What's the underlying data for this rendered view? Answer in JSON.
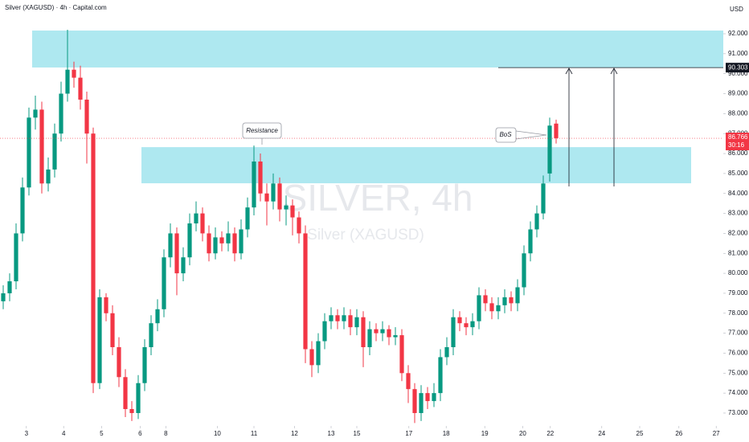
{
  "chart_data": {
    "type": "candlestick",
    "title": "Silver (XAGUSD) · 4h · Capital.com",
    "currency": "USD",
    "watermark": "SILVER, 4h",
    "watermark_subtitle": "Silver (XAGUSD)",
    "up_color": "#089981",
    "down_color": "#f23645",
    "open": [
      78.6,
      79.0,
      79.6,
      82.0,
      84.3,
      87.8,
      88.2,
      84.5,
      85.2,
      87.0,
      89.0,
      90.2,
      89.8,
      88.7,
      87.0,
      74.5,
      78.8,
      78.0,
      76.3,
      74.8,
      73.2,
      73.0,
      74.5,
      76.3,
      77.5,
      78.2,
      80.8,
      82.0,
      80.0,
      80.8,
      82.5,
      83.0,
      82.0,
      81.0,
      81.8,
      81.5,
      82.0,
      81.0,
      82.2,
      83.3,
      85.6,
      84.0,
      83.6,
      84.5,
      83.2,
      83.4,
      82.8,
      82.0,
      76.2,
      75.4,
      76.6,
      77.6,
      77.9,
      77.6,
      77.9,
      77.3,
      77.8,
      76.3,
      77.2,
      77.0,
      77.2,
      76.8,
      76.9,
      75.0,
      74.2,
      73.0,
      74.0,
      73.6,
      74.0,
      75.8,
      76.3,
      77.8,
      77.5,
      77.3,
      77.6,
      78.9,
      78.5,
      78.1,
      78.4,
      78.8,
      78.5,
      79.3,
      81.0,
      82.2,
      83.0,
      85.0,
      87.5
    ],
    "high": [
      79.4,
      80.0,
      82.5,
      84.8,
      88.3,
      88.9,
      88.6,
      85.8,
      87.5,
      89.6,
      92.2,
      90.6,
      90.4,
      89.1,
      87.3,
      79.2,
      79.0,
      78.4,
      76.8,
      75.2,
      73.6,
      74.9,
      76.7,
      77.9,
      78.7,
      81.2,
      82.5,
      82.3,
      81.3,
      83.0,
      83.6,
      83.3,
      82.4,
      82.3,
      82.1,
      82.6,
      82.3,
      82.7,
      83.8,
      86.4,
      86.0,
      84.5,
      85.0,
      84.8,
      83.9,
      83.7,
      83.1,
      82.4,
      76.6,
      77.0,
      78.0,
      78.3,
      78.2,
      78.3,
      78.2,
      78.2,
      78.1,
      77.6,
      77.5,
      77.6,
      77.4,
      77.3,
      77.2,
      75.4,
      74.5,
      74.4,
      74.3,
      74.5,
      76.2,
      76.8,
      78.2,
      78.1,
      77.8,
      78.0,
      79.3,
      79.2,
      78.8,
      78.8,
      79.2,
      79.1,
      79.7,
      81.4,
      82.6,
      83.4,
      84.9,
      87.8,
      87.7
    ],
    "low": [
      78.2,
      78.6,
      79.2,
      81.6,
      83.9,
      87.2,
      84.0,
      84.1,
      84.8,
      86.6,
      88.6,
      89.3,
      88.2,
      85.5,
      74.0,
      74.2,
      77.6,
      75.9,
      74.3,
      72.8,
      72.6,
      72.7,
      74.1,
      75.9,
      77.1,
      77.8,
      80.3,
      78.9,
      79.6,
      80.4,
      82.1,
      81.6,
      80.6,
      80.7,
      81.1,
      81.1,
      80.6,
      80.7,
      81.8,
      82.9,
      83.6,
      82.4,
      83.2,
      82.6,
      82.4,
      81.9,
      81.5,
      75.5,
      74.8,
      75.0,
      76.2,
      77.2,
      77.2,
      77.2,
      76.9,
      76.9,
      75.3,
      75.9,
      76.6,
      76.6,
      76.4,
      76.4,
      74.6,
      73.5,
      72.5,
      72.6,
      73.2,
      73.3,
      73.6,
      75.4,
      75.9,
      77.1,
      76.9,
      76.9,
      77.2,
      78.1,
      77.7,
      77.7,
      78.0,
      78.1,
      78.1,
      78.9,
      80.6,
      81.8,
      82.7,
      84.6,
      86.5
    ],
    "close": [
      79.0,
      79.6,
      82.0,
      84.3,
      87.8,
      88.2,
      84.5,
      85.2,
      87.0,
      89.0,
      90.2,
      89.8,
      88.7,
      87.0,
      74.5,
      78.8,
      78.0,
      76.3,
      74.8,
      73.2,
      73.0,
      74.5,
      76.3,
      77.5,
      78.2,
      80.8,
      82.0,
      80.0,
      80.8,
      82.5,
      83.0,
      82.0,
      81.0,
      81.8,
      81.5,
      82.0,
      81.0,
      82.2,
      83.3,
      85.6,
      84.0,
      83.6,
      84.5,
      83.2,
      83.4,
      82.8,
      82.0,
      76.2,
      75.4,
      76.6,
      77.6,
      77.9,
      77.6,
      77.9,
      77.3,
      77.8,
      76.3,
      77.2,
      77.0,
      77.2,
      76.8,
      76.9,
      75.0,
      74.2,
      73.0,
      74.0,
      73.6,
      74.0,
      75.8,
      76.3,
      77.8,
      77.5,
      77.3,
      77.6,
      78.9,
      78.5,
      78.1,
      78.4,
      78.8,
      78.5,
      79.3,
      81.0,
      82.2,
      83.0,
      84.5,
      87.4,
      86.77
    ],
    "xlim": [
      -0.5,
      112
    ],
    "xticks": [
      {
        "value": 3.6,
        "label": "3"
      },
      {
        "value": 9.4,
        "label": "4"
      },
      {
        "value": 15.3,
        "label": "5"
      },
      {
        "value": 21.3,
        "label": "6"
      },
      {
        "value": 25.3,
        "label": "8"
      },
      {
        "value": 33.3,
        "label": "10"
      },
      {
        "value": 39,
        "label": "11"
      },
      {
        "value": 45.3,
        "label": "12"
      },
      {
        "value": 51,
        "label": "13"
      },
      {
        "value": 55,
        "label": "15"
      },
      {
        "value": 63.1,
        "label": "17"
      },
      {
        "value": 68.9,
        "label": "18"
      },
      {
        "value": 74.9,
        "label": "19"
      },
      {
        "value": 80.8,
        "label": "20"
      },
      {
        "value": 85.1,
        "label": "22"
      },
      {
        "value": 93.1,
        "label": "24"
      },
      {
        "value": 99,
        "label": "25"
      },
      {
        "value": 105.1,
        "label": "26"
      },
      {
        "value": 110.9,
        "label": "27"
      }
    ],
    "ylim": [
      72.355,
      93.691
    ],
    "yticks": [
      {
        "value": 73,
        "label": "73.000"
      },
      {
        "value": 74,
        "label": "74.000"
      },
      {
        "value": 75,
        "label": "75.000"
      },
      {
        "value": 76,
        "label": "76.000"
      },
      {
        "value": 77,
        "label": "77.000"
      },
      {
        "value": 78,
        "label": "78.000"
      },
      {
        "value": 79,
        "label": "79.000"
      },
      {
        "value": 80,
        "label": "80.000"
      },
      {
        "value": 81,
        "label": "81.000"
      },
      {
        "value": 82,
        "label": "82.000"
      },
      {
        "value": 83,
        "label": "83.000"
      },
      {
        "value": 84,
        "label": "84.000"
      },
      {
        "value": 85,
        "label": "85.000"
      },
      {
        "value": 86,
        "label": "86.000"
      },
      {
        "value": 87,
        "label": "87.000"
      },
      {
        "value": 88,
        "label": "88.000"
      },
      {
        "value": 89,
        "label": "89.000"
      },
      {
        "value": 90,
        "label": "90.000"
      },
      {
        "value": 91,
        "label": "91.000"
      },
      {
        "value": 92,
        "label": "92.000"
      }
    ],
    "zones": [
      {
        "top": 92.16,
        "bottom": 90.31,
        "color": "#a5e6ee"
      },
      {
        "top": 86.32,
        "bottom": 84.51,
        "color": "#a5e6ee"
      }
    ],
    "level": 90.303,
    "last_price": 86.766,
    "countdown": "30:16",
    "annotations": [
      "Resistance",
      "BoS"
    ]
  }
}
